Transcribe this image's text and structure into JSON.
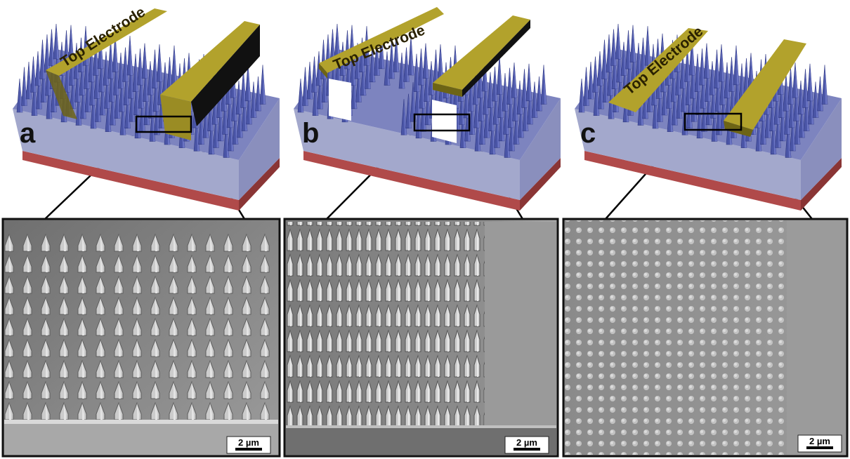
{
  "figure": {
    "panels": [
      {
        "id": "a",
        "label": "a",
        "electrode_text": "Top Electrode",
        "scale_bar": "2 µm"
      },
      {
        "id": "b",
        "label": "b",
        "electrode_text": "Top Electrode",
        "scale_bar": "2 µm"
      },
      {
        "id": "c",
        "label": "c",
        "electrode_text": "Top Electrode",
        "scale_bar": "2 µm"
      }
    ],
    "colors": {
      "nanowire": "#4a55a6",
      "nanowire_shadow": "#2f3780",
      "substrate": "#a3a8cc",
      "substrate_side": "#8a8fbd",
      "bottom_layer": "#b04a4a",
      "electrode": "#b2a22c",
      "electrode_dark": "#6d6415",
      "sem_background": "#8e8e8e"
    }
  }
}
